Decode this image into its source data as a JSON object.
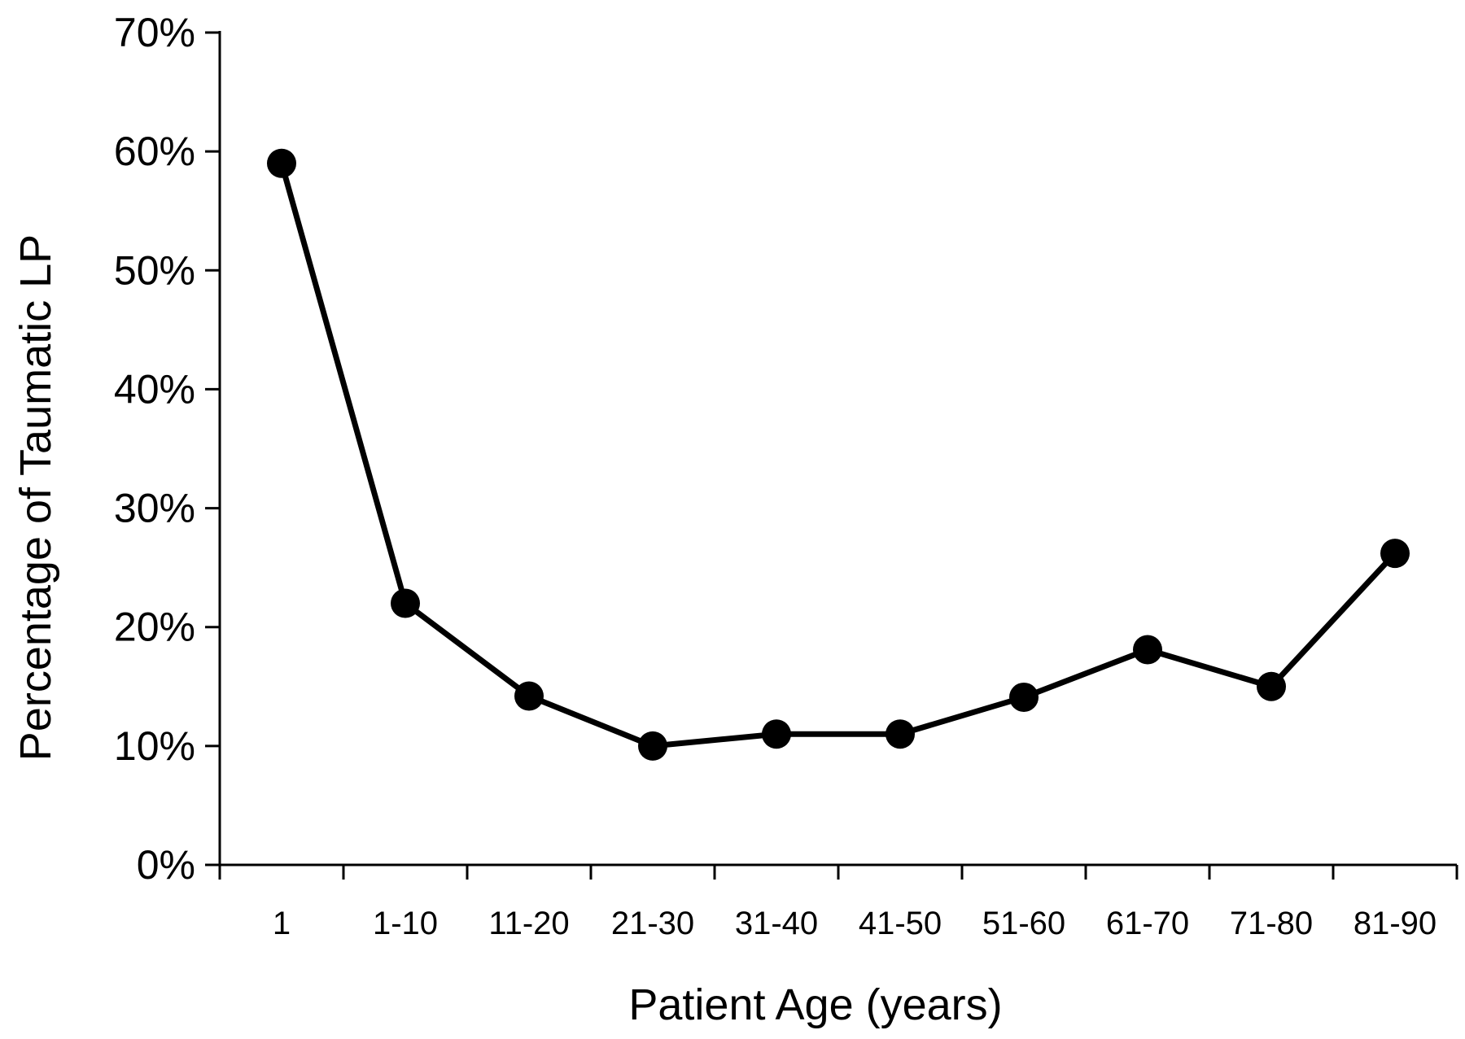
{
  "chart_data": {
    "type": "line",
    "title": "",
    "xlabel": "Patient Age (years)",
    "ylabel": "Percentage of Taumatic LP",
    "categories": [
      "1",
      "1-10",
      "11-20",
      "21-30",
      "31-40",
      "41-50",
      "51-60",
      "61-70",
      "71-80",
      "81-90"
    ],
    "series": [
      {
        "values": [
          59,
          22,
          14.2,
          10,
          11,
          11,
          14.1,
          18.1,
          15,
          26.2
        ],
        "color": "#000000",
        "marker": "filled-circle"
      }
    ],
    "yticks": [
      "0%",
      "10%",
      "20%",
      "30%",
      "40%",
      "50%",
      "60%",
      "70%"
    ],
    "ylim": [
      0,
      70
    ],
    "grid": false,
    "legend": "none"
  }
}
